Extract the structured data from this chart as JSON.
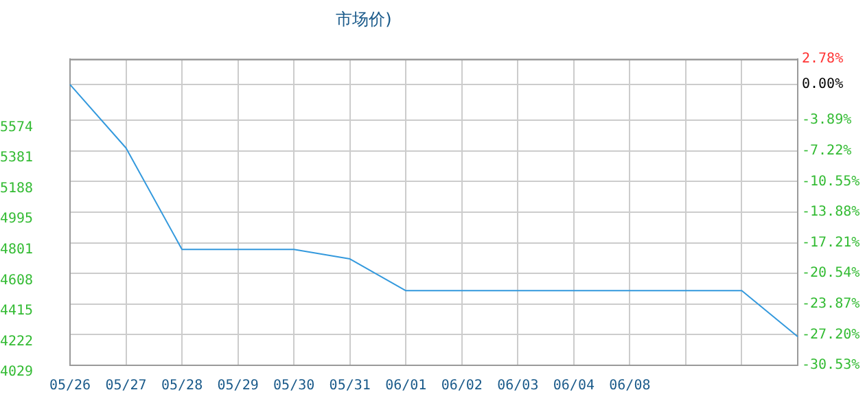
{
  "chart_data": {
    "type": "line",
    "title": "市场价)",
    "categories": [
      "05/26",
      "05/27",
      "05/28",
      "05/29",
      "05/30",
      "05/31",
      "06/01",
      "06/02",
      "06/03",
      "06/04",
      "06/08",
      null,
      null,
      null
    ],
    "series": [
      {
        "color": "#3399dd",
        "values": [
          5800,
          5400,
          4760,
          4760,
          4760,
          4700,
          4500,
          4500,
          4500,
          4500,
          4500,
          4500,
          4500,
          4210
        ]
      }
    ],
    "ylim": [
      4029,
      5961
    ],
    "yticks": [
      4029,
      4222,
      4415,
      4608,
      4801,
      4995,
      5188,
      5381,
      5574
    ],
    "y2lim": [
      -30.53,
      2.78
    ],
    "y2ticks": [
      {
        "value": -30.53,
        "label": "-30.53%"
      },
      {
        "value": -27.2,
        "label": "-27.20%"
      },
      {
        "value": -23.87,
        "label": "-23.87%"
      },
      {
        "value": -20.54,
        "label": "-20.54%"
      },
      {
        "value": -17.21,
        "label": "-17.21%"
      },
      {
        "value": -13.88,
        "label": "-13.88%"
      },
      {
        "value": -10.55,
        "label": "-10.55%"
      },
      {
        "value": -7.22,
        "label": "-7.22%"
      },
      {
        "value": -3.89,
        "label": "-3.89%"
      },
      {
        "value": 0,
        "label": "0.00%"
      },
      {
        "value": 2.78,
        "label": "2.78%"
      }
    ],
    "grid": true,
    "legend": false,
    "marker": "none",
    "line_style": "solid"
  }
}
